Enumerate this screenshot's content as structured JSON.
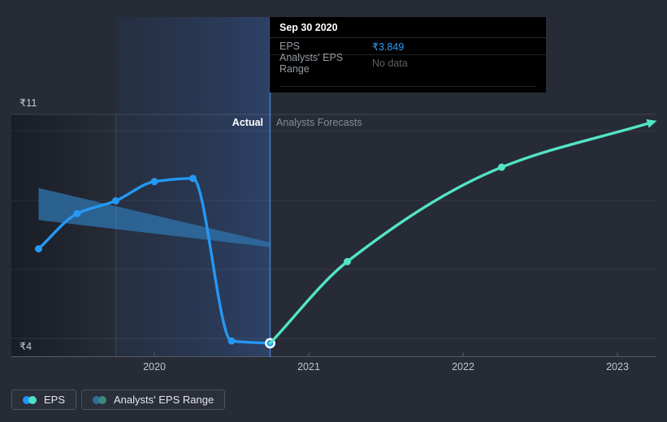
{
  "tooltip": {
    "title": "Sep 30 2020",
    "rows": [
      {
        "label": "EPS",
        "value": "₹3.849"
      },
      {
        "label": "Analysts' EPS Range",
        "value": "No data"
      }
    ]
  },
  "header": {
    "actual_label": "Actual",
    "forecast_label": "Analysts Forecasts"
  },
  "y_axis": {
    "top_label": "₹11",
    "bottom_label": "₹4"
  },
  "x_axis": {
    "ticks": [
      "2020",
      "2021",
      "2022",
      "2023"
    ]
  },
  "legend": [
    {
      "label": "EPS",
      "colors": [
        "#2196f3",
        "#4de0c6"
      ]
    },
    {
      "label": "Analysts' EPS Range",
      "colors": [
        "#2f6f96",
        "#3f8781"
      ]
    }
  ],
  "colors": {
    "background": "#262b36",
    "eps_line": "#2598f3",
    "forecast_line": "#53e4c3",
    "range_band": "#2e6fa5",
    "tooltip_bg": "#000000",
    "accent_value": "#2e9bf5",
    "selected_point_ring": "#ffffff"
  },
  "chart_data": {
    "type": "line",
    "title": "EPS actual vs analysts forecasts",
    "x_unit": "year",
    "xlim": [
      2019.07,
      2023.25
    ],
    "ylim": [
      4,
      11
    ],
    "x_ticks": [
      2020,
      2021,
      2022,
      2023
    ],
    "grid": true,
    "series": [
      {
        "name": "EPS",
        "color": "#2598f3",
        "points": [
          [
            2019.25,
            6.8
          ],
          [
            2019.5,
            7.9
          ],
          [
            2019.75,
            8.3
          ],
          [
            2020.0,
            8.9
          ],
          [
            2020.25,
            9.0
          ],
          [
            2020.5,
            3.92
          ],
          [
            2020.75,
            3.849
          ]
        ]
      },
      {
        "name": "Analysts Forecasts",
        "color": "#53e4c3",
        "arrow_end": true,
        "points": [
          [
            2020.75,
            3.849
          ],
          [
            2021.25,
            6.4
          ],
          [
            2022.25,
            9.35
          ],
          [
            2023.2,
            10.72
          ]
        ]
      }
    ],
    "range_band": {
      "name": "Analysts' EPS Range",
      "points": [
        {
          "x": 2019.25,
          "high": 8.7,
          "low": 7.7
        },
        {
          "x": 2020.75,
          "high": 7.0,
          "low": 6.85
        }
      ]
    },
    "selected_point": {
      "series": "EPS",
      "x": 2020.75,
      "y": 3.849,
      "label": "Sep 30 2020"
    },
    "highlight_span": [
      2019.75,
      2020.75
    ],
    "actual_forecast_boundary": 2020.75
  }
}
